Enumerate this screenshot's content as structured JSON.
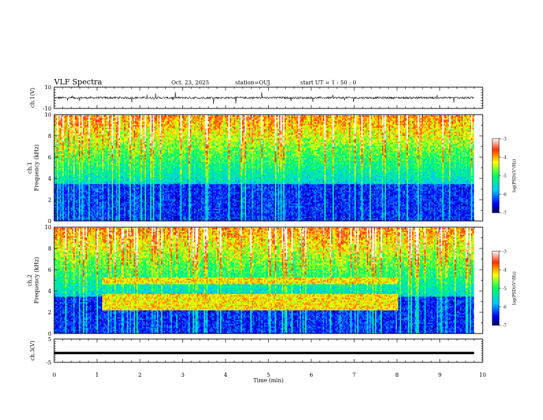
{
  "header": {
    "title": "VLF Spectra",
    "date": "Oct. 23, 2025",
    "station": "station=OUJ",
    "start": "start  UT =   1 : 50 : 0"
  },
  "chart_data": [
    {
      "type": "line",
      "panel": "ch1-waveform",
      "ylabel": "ch.1(V)",
      "ylim": [
        -10,
        10
      ],
      "yticks": [
        -10,
        10
      ],
      "description_values": {
        "baseline": 0,
        "noise_amplitude": 2,
        "spike_amplitude": 6
      },
      "x_range_min": [
        0,
        9.8
      ]
    },
    {
      "type": "heatmap",
      "panel": "ch1-spectrogram",
      "ylabel": "ch.1\nFrequency (kHz)",
      "ylim": [
        0,
        10
      ],
      "yticks": [
        0,
        2,
        4,
        6,
        8,
        10
      ],
      "colorbar": {
        "label": "log(PSD)(V²/Hz)",
        "ticks": [
          -3,
          -4,
          -5,
          -6,
          -7
        ],
        "range": [
          -7,
          -3
        ]
      }
    },
    {
      "type": "heatmap",
      "panel": "ch2-spectrogram",
      "ylabel": "ch.2\nFrequency (kHz)",
      "ylim": [
        0,
        10
      ],
      "yticks": [
        0,
        2,
        4,
        6,
        8,
        10
      ],
      "colorbar": {
        "label": "log(PSD)(V²/Hz)",
        "ticks": [
          -3,
          -4,
          -5,
          -6,
          -7
        ],
        "range": [
          -7,
          -3
        ]
      },
      "bands": [
        {
          "freq_khz": 5.0,
          "t_start_min": 1.1,
          "t_end_min": 8.0
        },
        {
          "freq_khz": 2.6,
          "t_start_min": 1.1,
          "t_end_min": 8.0
        },
        {
          "freq_khz": 3.4,
          "t_start_min": 1.1,
          "t_end_min": 8.0
        }
      ]
    },
    {
      "type": "line",
      "panel": "ch3-waveform",
      "ylabel": "ch.3(V)",
      "ylim": [
        -5,
        5
      ],
      "yticks": [
        -5,
        5
      ],
      "values_constant": -1,
      "x_range_min": [
        0,
        9.8
      ]
    }
  ],
  "xaxis": {
    "label": "Time  (min)",
    "ticks": [
      "0",
      "1",
      "2",
      "3",
      "4",
      "5",
      "6",
      "7",
      "8",
      "9",
      "10"
    ],
    "range": [
      0,
      10
    ]
  }
}
